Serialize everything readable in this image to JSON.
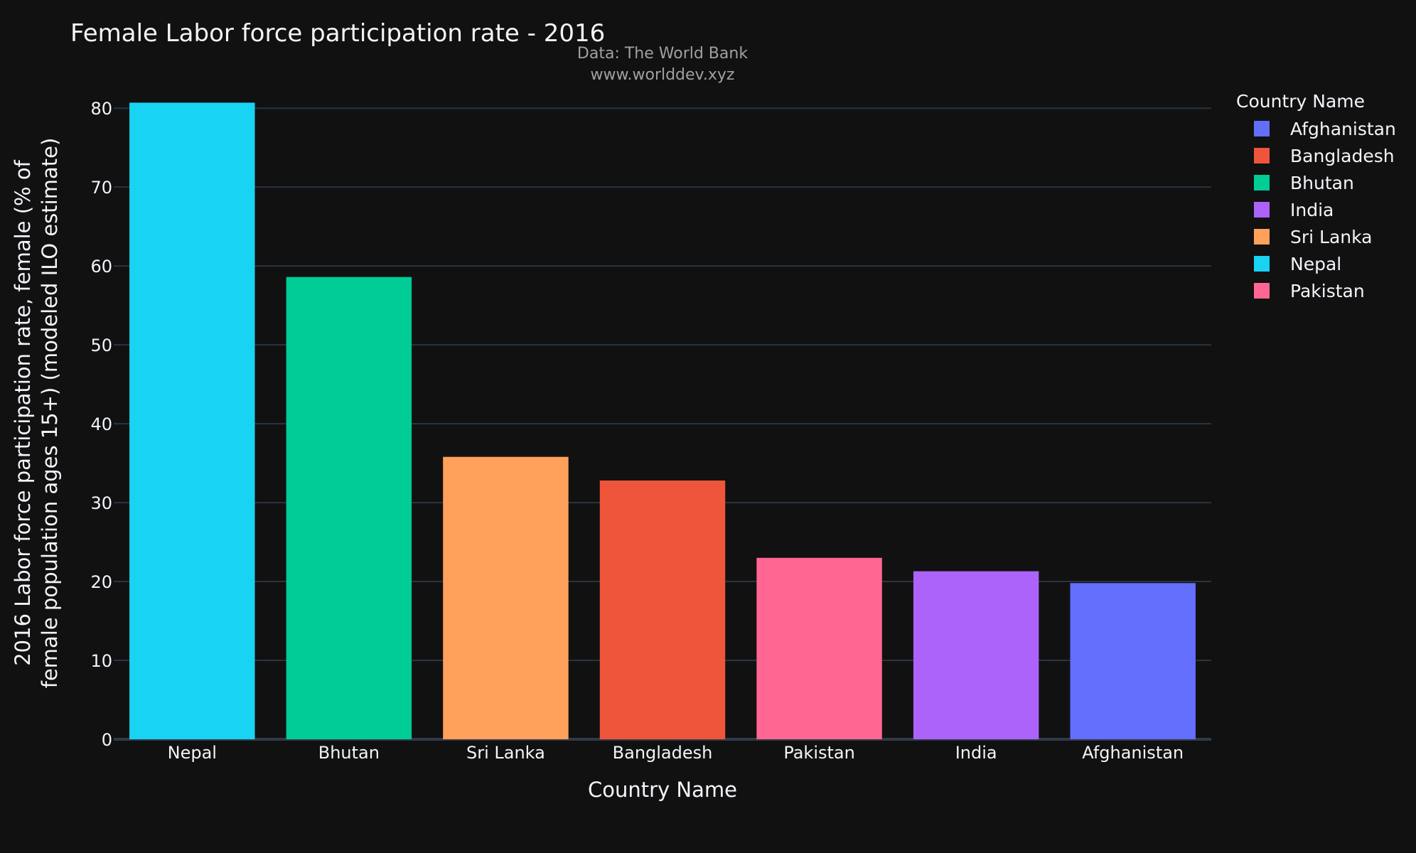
{
  "chart_data": {
    "type": "bar",
    "title": "Female Labor force participation rate - 2016",
    "subtitle_line1": "Data: The World Bank",
    "subtitle_line2": "www.worlddev.xyz",
    "xlabel": "Country Name",
    "ylabel_line1": "2016 Labor force participation rate, female (% of",
    "ylabel_line2": "female population ages 15+) (modeled ILO estimate)",
    "ylim": [
      0,
      82
    ],
    "yticks": [
      0,
      10,
      20,
      30,
      40,
      50,
      60,
      70,
      80
    ],
    "grid": true,
    "legend_title": "Country Name",
    "legend_placement": "right",
    "categories": [
      "Nepal",
      "Bhutan",
      "Sri Lanka",
      "Bangladesh",
      "Pakistan",
      "India",
      "Afghanistan"
    ],
    "series": [
      {
        "name": "Nepal",
        "category": "Nepal",
        "value": 80.7,
        "color": "#19d3f3"
      },
      {
        "name": "Bhutan",
        "category": "Bhutan",
        "value": 58.6,
        "color": "#00cc96"
      },
      {
        "name": "Sri Lanka",
        "category": "Sri Lanka",
        "value": 35.8,
        "color": "#ffa15a"
      },
      {
        "name": "Bangladesh",
        "category": "Bangladesh",
        "value": 32.8,
        "color": "#ef553b"
      },
      {
        "name": "Pakistan",
        "category": "Pakistan",
        "value": 23.0,
        "color": "#ff6692"
      },
      {
        "name": "India",
        "category": "India",
        "value": 21.3,
        "color": "#ab63fa"
      },
      {
        "name": "Afghanistan",
        "category": "Afghanistan",
        "value": 19.8,
        "color": "#636efa"
      }
    ],
    "legend_order": [
      "Afghanistan",
      "Bangladesh",
      "Bhutan",
      "India",
      "Sri Lanka",
      "Nepal",
      "Pakistan"
    ]
  }
}
